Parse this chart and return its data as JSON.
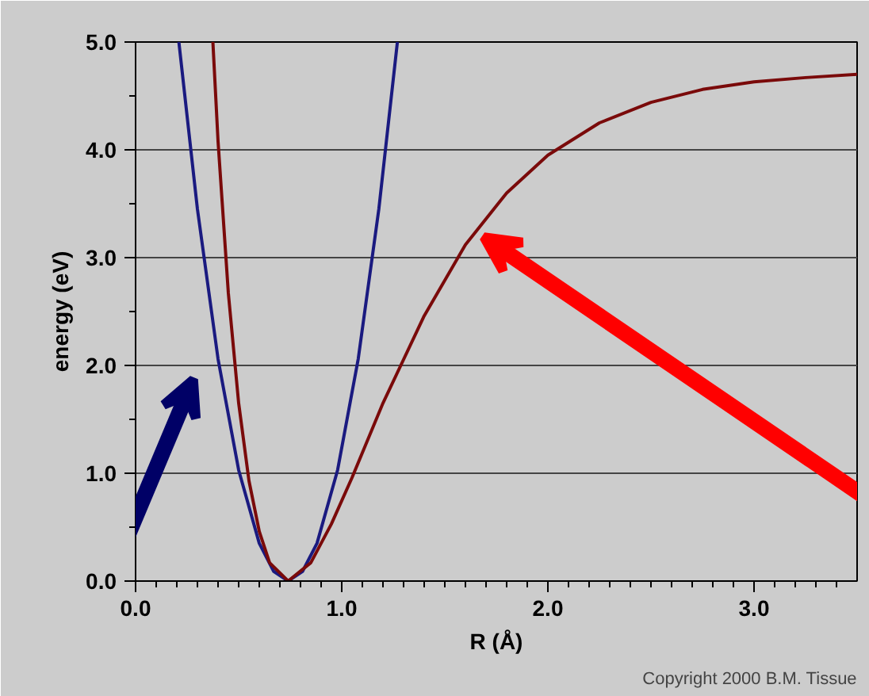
{
  "chart_data": {
    "type": "line",
    "xlabel": "R (Å)",
    "ylabel": "energy (eV)",
    "xlim": [
      0,
      3.5
    ],
    "ylim": [
      0,
      5
    ],
    "xticks": [
      {
        "value": 0,
        "label": "0.0"
      },
      {
        "value": 1,
        "label": "1.0"
      },
      {
        "value": 2,
        "label": "2.0"
      },
      {
        "value": 3,
        "label": "3.0"
      }
    ],
    "yticks": [
      {
        "value": 0,
        "label": "0.0"
      },
      {
        "value": 1,
        "label": "1.0"
      },
      {
        "value": 2,
        "label": "2.0"
      },
      {
        "value": 3,
        "label": "3.0"
      },
      {
        "value": 4,
        "label": "4.0"
      },
      {
        "value": 5,
        "label": "5.0"
      }
    ],
    "grid": "y",
    "marker": "none",
    "line_style": "solid",
    "series": [
      {
        "color": "#1a1a80",
        "x": [
          0.21,
          0.3,
          0.4,
          0.5,
          0.6,
          0.67,
          0.74,
          0.81,
          0.88,
          0.98,
          1.08,
          1.18,
          1.27
        ],
        "values": [
          5.0,
          3.45,
          2.06,
          1.03,
          0.35,
          0.09,
          0.0,
          0.09,
          0.35,
          1.03,
          2.06,
          3.45,
          5.0
        ]
      },
      {
        "color": "#7a0a0a",
        "x": [
          0.375,
          0.4,
          0.45,
          0.5,
          0.55,
          0.6,
          0.65,
          0.74,
          0.85,
          0.95,
          1.05,
          1.2,
          1.4,
          1.6,
          1.8,
          2.0,
          2.25,
          2.5,
          2.75,
          3.0,
          3.25,
          3.5
        ],
        "values": [
          5.0,
          4.08,
          2.67,
          1.65,
          0.93,
          0.46,
          0.17,
          0.0,
          0.17,
          0.53,
          0.96,
          1.65,
          2.46,
          3.12,
          3.6,
          3.95,
          4.25,
          4.44,
          4.56,
          4.63,
          4.67,
          4.7
        ]
      }
    ],
    "annotations": [
      "Copyright 2000 B.M. Tissue"
    ]
  }
}
